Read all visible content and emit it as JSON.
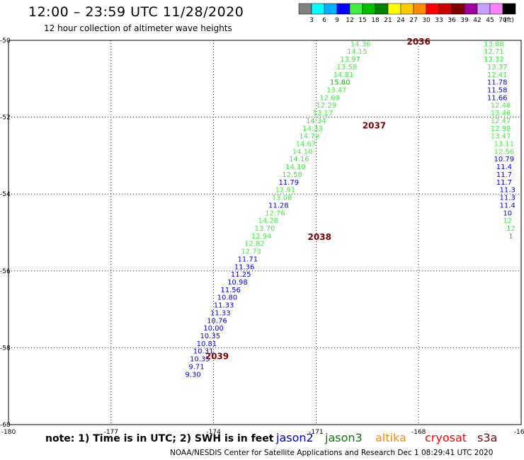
{
  "header": {
    "title": "12:00 – 23:59 UTC 11/28/2020",
    "subtitle": "12 hour collection of altimeter wave heights"
  },
  "colorbar": {
    "labels": [
      "3",
      "6",
      "9",
      "12",
      "15",
      "18",
      "21",
      "24",
      "27",
      "30",
      "33",
      "36",
      "39",
      "42",
      "45",
      "70",
      "(ft)"
    ],
    "colors": [
      "#808080",
      "#00ffff",
      "#00b0ff",
      "#0000ff",
      "#40ee40",
      "#00c000",
      "#008000",
      "#ffff00",
      "#ffc800",
      "#ff8c00",
      "#ff0000",
      "#cc0000",
      "#800000",
      "#a000a0",
      "#c8a0ff",
      "#ff80ff",
      "#000000"
    ]
  },
  "footer": {
    "note": "note: 1) Time is in UTC; 2) SWH is in feet",
    "satellites": [
      {
        "name": "jason2",
        "color": "#0000cc"
      },
      {
        "name": "jason3",
        "color": "#008000"
      },
      {
        "name": "altika",
        "color": "#ff8c00"
      },
      {
        "name": "cryosat",
        "color": "#ff0000"
      },
      {
        "name": "s3a",
        "color": "#800000"
      }
    ],
    "credit": "NOAA/NESDIS Center for Satellite Applications and Research    Dec  1 08:29:41 UTC 2020"
  },
  "chart_data": {
    "type": "scatter",
    "x_label_ticks": [
      "-180",
      "-177",
      "-174",
      "-171",
      "-168",
      "-165"
    ],
    "y_label_ticks": [
      "-50",
      "-52",
      "-54",
      "-56",
      "-58",
      "-60"
    ],
    "xlim": [
      -180,
      -165
    ],
    "ylim": [
      -60,
      -50
    ],
    "grid": true,
    "series": [
      {
        "name": "track-left",
        "color_key": "value",
        "points": [
          {
            "lon": -169.7,
            "lat": -50.08,
            "v": "14.36"
          },
          {
            "lon": -169.8,
            "lat": -50.28,
            "v": "14.15"
          },
          {
            "lon": -170.0,
            "lat": -50.48,
            "v": "13.97"
          },
          {
            "lon": -170.1,
            "lat": -50.68,
            "v": "13.58"
          },
          {
            "lon": -170.2,
            "lat": -50.88,
            "v": "14.81"
          },
          {
            "lon": -170.3,
            "lat": -51.08,
            "v": "15.80"
          },
          {
            "lon": -170.4,
            "lat": -51.28,
            "v": "13.47"
          },
          {
            "lon": -170.6,
            "lat": -51.48,
            "v": "12.69"
          },
          {
            "lon": -170.7,
            "lat": -51.68,
            "v": "12.29"
          },
          {
            "lon": -170.8,
            "lat": -51.88,
            "v": "13.17"
          },
          {
            "lon": -171.0,
            "lat": -52.08,
            "v": "14.34"
          },
          {
            "lon": -171.1,
            "lat": -52.28,
            "v": "14.33"
          },
          {
            "lon": -171.2,
            "lat": -52.48,
            "v": "14.79"
          },
          {
            "lon": -171.3,
            "lat": -52.68,
            "v": "14.67"
          },
          {
            "lon": -171.4,
            "lat": -52.88,
            "v": "14.10"
          },
          {
            "lon": -171.5,
            "lat": -53.08,
            "v": "14.16"
          },
          {
            "lon": -171.6,
            "lat": -53.28,
            "v": "14.10"
          },
          {
            "lon": -171.7,
            "lat": -53.48,
            "v": "12.58"
          },
          {
            "lon": -171.8,
            "lat": -53.68,
            "v": "11.79"
          },
          {
            "lon": -171.9,
            "lat": -53.88,
            "v": "12.91"
          },
          {
            "lon": -172.0,
            "lat": -54.08,
            "v": "13.08"
          },
          {
            "lon": -172.1,
            "lat": -54.28,
            "v": "11.28"
          },
          {
            "lon": -172.2,
            "lat": -54.48,
            "v": "12.76"
          },
          {
            "lon": -172.4,
            "lat": -54.68,
            "v": "14.28"
          },
          {
            "lon": -172.5,
            "lat": -54.88,
            "v": "13.70"
          },
          {
            "lon": -172.6,
            "lat": -55.08,
            "v": "12.94"
          },
          {
            "lon": -172.8,
            "lat": -55.28,
            "v": "12.82"
          },
          {
            "lon": -172.9,
            "lat": -55.48,
            "v": "12.73"
          },
          {
            "lon": -173.0,
            "lat": -55.68,
            "v": "11.71"
          },
          {
            "lon": -173.1,
            "lat": -55.88,
            "v": "11.36"
          },
          {
            "lon": -173.2,
            "lat": -56.08,
            "v": "11.25"
          },
          {
            "lon": -173.3,
            "lat": -56.28,
            "v": "10.98"
          },
          {
            "lon": -173.5,
            "lat": -56.48,
            "v": "11.56"
          },
          {
            "lon": -173.6,
            "lat": -56.68,
            "v": "10.80"
          },
          {
            "lon": -173.7,
            "lat": -56.88,
            "v": "11.33"
          },
          {
            "lon": -173.8,
            "lat": -57.08,
            "v": "11.33"
          },
          {
            "lon": -173.9,
            "lat": -57.28,
            "v": "10.76"
          },
          {
            "lon": -174.0,
            "lat": -57.48,
            "v": "10.00"
          },
          {
            "lon": -174.1,
            "lat": -57.68,
            "v": "10.35"
          },
          {
            "lon": -174.2,
            "lat": -57.88,
            "v": "10.81"
          },
          {
            "lon": -174.3,
            "lat": -58.08,
            "v": "10.31"
          },
          {
            "lon": -174.4,
            "lat": -58.28,
            "v": "10.35"
          },
          {
            "lon": -174.5,
            "lat": -58.48,
            "v": "9.71"
          },
          {
            "lon": -174.6,
            "lat": -58.68,
            "v": "9.30"
          }
        ]
      },
      {
        "name": "track-right",
        "color_key": "value",
        "points": [
          {
            "lon": -165.8,
            "lat": -50.08,
            "v": "13.88"
          },
          {
            "lon": -165.8,
            "lat": -50.28,
            "v": "12.71"
          },
          {
            "lon": -165.8,
            "lat": -50.48,
            "v": "13.32"
          },
          {
            "lon": -165.7,
            "lat": -50.68,
            "v": "13.37"
          },
          {
            "lon": -165.7,
            "lat": -50.88,
            "v": "12.41"
          },
          {
            "lon": -165.7,
            "lat": -51.08,
            "v": "11.78"
          },
          {
            "lon": -165.7,
            "lat": -51.28,
            "v": "11.58"
          },
          {
            "lon": -165.7,
            "lat": -51.48,
            "v": "11.66"
          },
          {
            "lon": -165.6,
            "lat": -51.68,
            "v": "12.48"
          },
          {
            "lon": -165.6,
            "lat": -51.88,
            "v": "13.46"
          },
          {
            "lon": -165.6,
            "lat": -52.08,
            "v": "12.47"
          },
          {
            "lon": -165.6,
            "lat": -52.28,
            "v": "12.98"
          },
          {
            "lon": -165.6,
            "lat": -52.48,
            "v": "13.47"
          },
          {
            "lon": -165.5,
            "lat": -52.68,
            "v": "13.11"
          },
          {
            "lon": -165.5,
            "lat": -52.88,
            "v": "12.56"
          },
          {
            "lon": -165.5,
            "lat": -53.08,
            "v": "10.79"
          },
          {
            "lon": -165.5,
            "lat": -53.28,
            "v": "11.4"
          },
          {
            "lon": -165.5,
            "lat": -53.48,
            "v": "11.7"
          },
          {
            "lon": -165.5,
            "lat": -53.68,
            "v": "11.7"
          },
          {
            "lon": -165.4,
            "lat": -53.88,
            "v": "11.3"
          },
          {
            "lon": -165.4,
            "lat": -54.08,
            "v": "11.3"
          },
          {
            "lon": -165.4,
            "lat": -54.28,
            "v": "11.4"
          },
          {
            "lon": -165.4,
            "lat": -54.48,
            "v": "10"
          },
          {
            "lon": -165.4,
            "lat": -54.68,
            "v": "12"
          },
          {
            "lon": -165.3,
            "lat": -54.88,
            "v": "12"
          },
          {
            "lon": -165.3,
            "lat": -55.08,
            "v": "1"
          }
        ]
      }
    ],
    "time_markers": [
      {
        "lon": -168.0,
        "lat": -50.02,
        "label": "2036"
      },
      {
        "lon": -169.3,
        "lat": -52.2,
        "label": "2037"
      },
      {
        "lon": -170.9,
        "lat": -55.1,
        "label": "2038"
      },
      {
        "lon": -173.9,
        "lat": -58.2,
        "label": "2039"
      }
    ]
  }
}
